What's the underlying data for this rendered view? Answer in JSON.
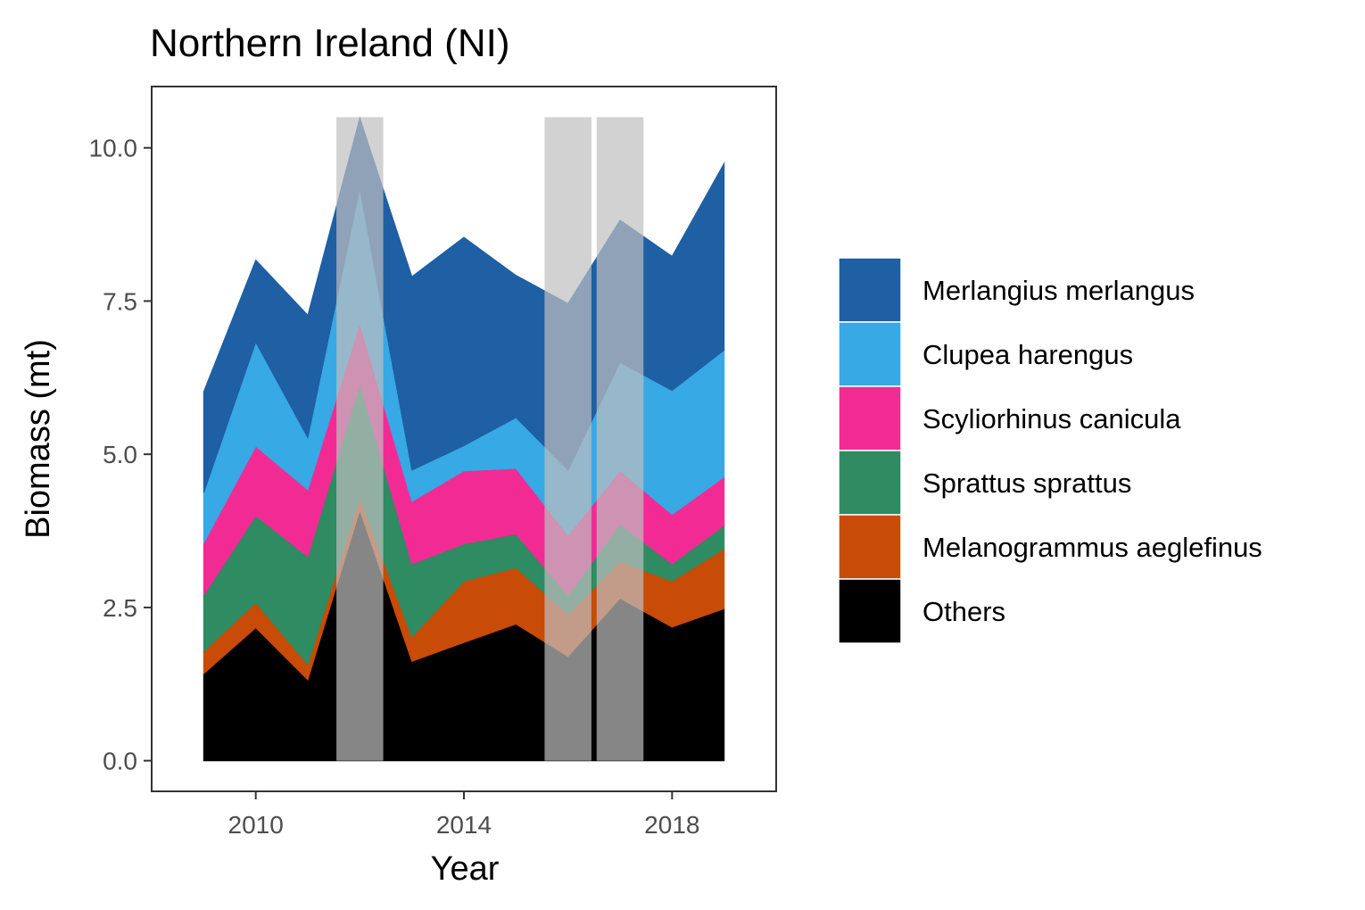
{
  "chart_data": {
    "type": "area",
    "stacked": true,
    "title": "Northern Ireland (NI)",
    "xlabel": "Year",
    "ylabel": "Biomass (mt)",
    "xlim": [
      2008,
      2020
    ],
    "ylim": [
      -0.5,
      11
    ],
    "x_ticks": [
      {
        "value": 2010,
        "label": "2010"
      },
      {
        "value": 2014,
        "label": "2014"
      },
      {
        "value": 2018,
        "label": "2018"
      }
    ],
    "y_ticks": [
      {
        "value": 0,
        "label": "0.0"
      },
      {
        "value": 2.5,
        "label": "2.5"
      },
      {
        "value": 5,
        "label": "5.0"
      },
      {
        "value": 7.5,
        "label": "7.5"
      },
      {
        "value": 10,
        "label": "10.0"
      }
    ],
    "grid": false,
    "legend_position": "right",
    "x": [
      2009,
      2010,
      2011,
      2012,
      2013,
      2014,
      2015,
      2016,
      2017,
      2018,
      2019
    ],
    "series": [
      {
        "name": "Others",
        "color": "#000000",
        "values": [
          1.42,
          2.17,
          1.32,
          4.09,
          1.62,
          1.93,
          2.23,
          1.7,
          2.65,
          2.18,
          2.48
        ]
      },
      {
        "name": "Melanogrammus aeglefinus",
        "color": "#C84B07",
        "values": [
          0.36,
          0.41,
          0.25,
          0.21,
          0.4,
          1.0,
          0.92,
          0.69,
          0.6,
          0.75,
          0.98
        ]
      },
      {
        "name": "Sprattus sprattus",
        "color": "#2E8B62",
        "values": [
          0.92,
          1.42,
          1.76,
          1.85,
          1.19,
          0.61,
          0.55,
          0.31,
          0.61,
          0.28,
          0.38
        ]
      },
      {
        "name": "Scyliorhinus canicula",
        "color": "#F22B94",
        "values": [
          0.85,
          1.13,
          1.09,
          0.99,
          1.02,
          1.19,
          1.07,
          0.98,
          0.87,
          0.81,
          0.79
        ]
      },
      {
        "name": "Clupea harengus",
        "color": "#37A9E5",
        "values": [
          0.82,
          1.7,
          0.85,
          2.2,
          0.51,
          0.41,
          0.83,
          1.06,
          1.77,
          2.02,
          2.07
        ]
      },
      {
        "name": "Merlangius merlangus",
        "color": "#1F5FA4",
        "values": [
          1.65,
          1.34,
          2.0,
          1.15,
          3.16,
          3.4,
          2.32,
          2.72,
          2.32,
          2.19,
          3.05
        ]
      }
    ],
    "highlight_bands": [
      {
        "x_start": 2011.55,
        "x_end": 2012.45,
        "y_top": 10.5
      },
      {
        "x_start": 2015.55,
        "x_end": 2016.45,
        "y_top": 10.5
      },
      {
        "x_start": 2016.55,
        "x_end": 2017.45,
        "y_top": 10.5
      }
    ],
    "band_color": "#bfbfbf",
    "legend_order": [
      "Merlangius merlangus",
      "Clupea harengus",
      "Scyliorhinus canicula",
      "Sprattus sprattus",
      "Melanogrammus aeglefinus",
      "Others"
    ]
  }
}
